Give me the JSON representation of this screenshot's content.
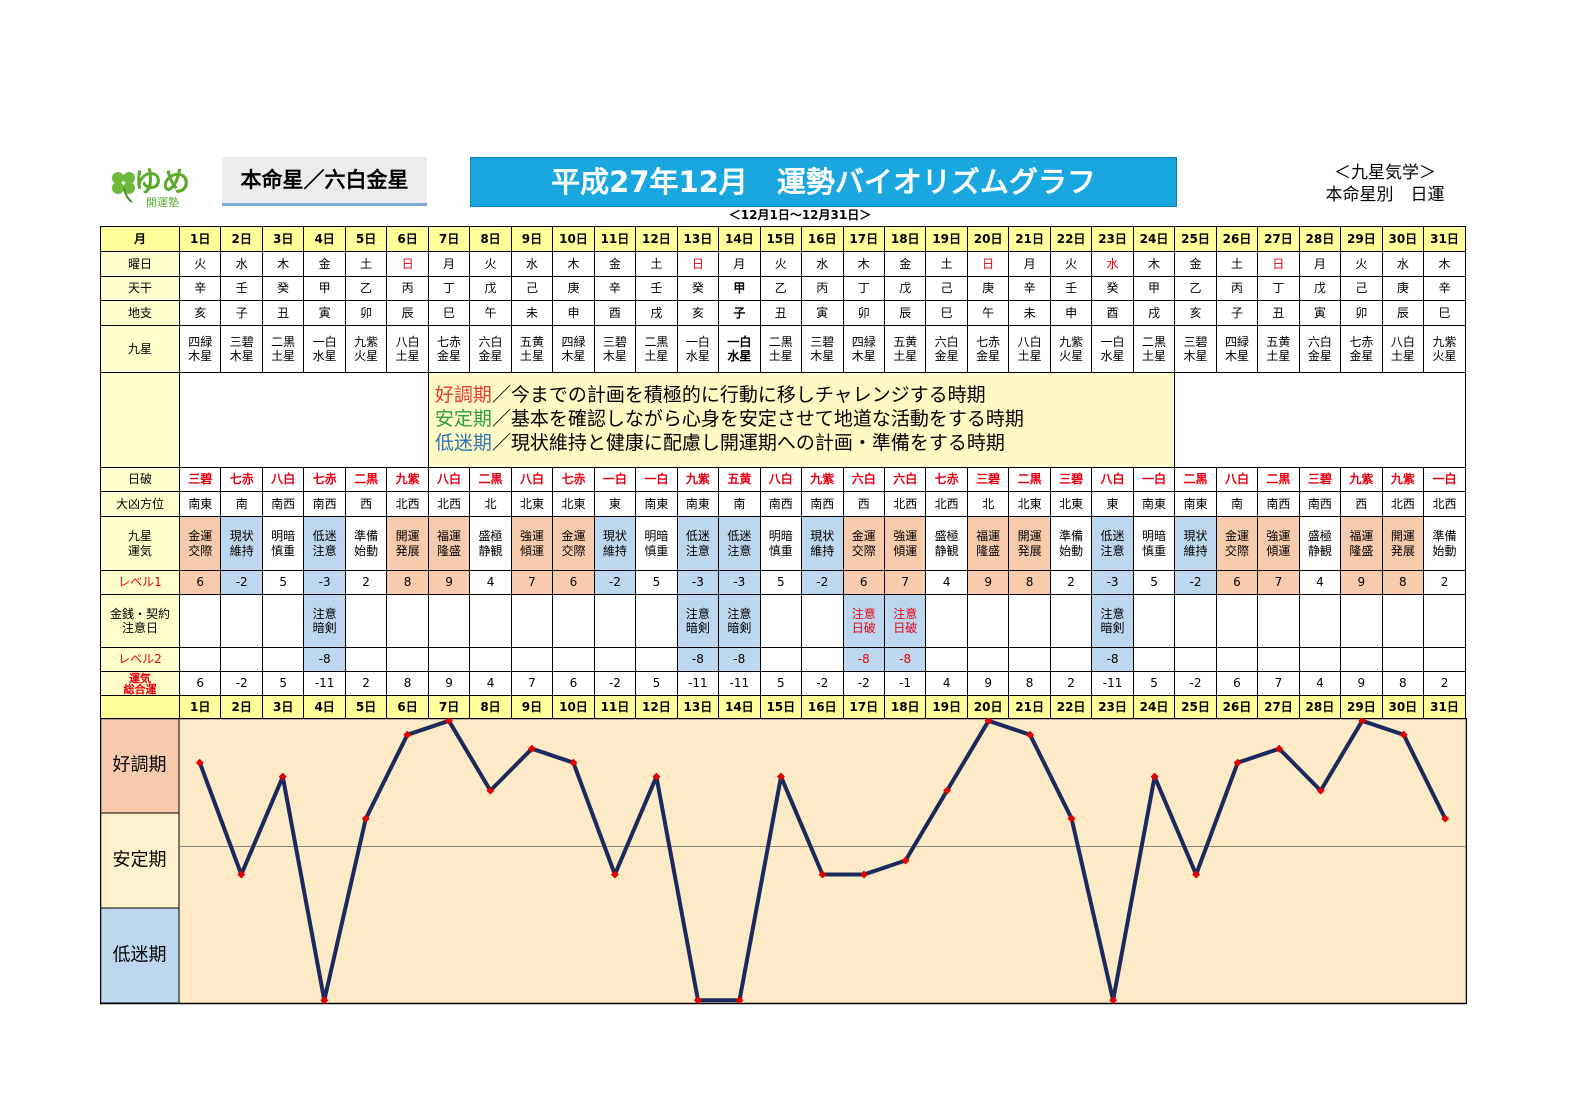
{
  "header": {
    "logo_main": "ゆめ",
    "logo_sub": "開運塾",
    "star": "本命星／六白金星",
    "title": "平成27年12月　運勢バイオリズムグラフ",
    "system": "＜九星気学＞",
    "kind": "本命星別　日運",
    "period": "＜12月1日～12月31日＞"
  },
  "table": {
    "labels": {
      "month": "月",
      "weekday": "曜日",
      "stem": "天干",
      "branch": "地支",
      "star": "九星",
      "break": "日破",
      "direction": "大凶方位",
      "fortune": "九星\n運気",
      "level1": "レベル1",
      "caution": "金銭・契約\n注意日",
      "level2": "レベル2",
      "total": "運気\n総合運"
    },
    "days": [
      "1日",
      "2日",
      "3日",
      "4日",
      "5日",
      "6日",
      "7日",
      "8日",
      "9日",
      "10日",
      "11日",
      "12日",
      "13日",
      "14日",
      "15日",
      "16日",
      "17日",
      "18日",
      "19日",
      "20日",
      "21日",
      "22日",
      "23日",
      "24日",
      "25日",
      "26日",
      "27日",
      "28日",
      "29日",
      "30日",
      "31日"
    ],
    "weekdays": [
      "火",
      "水",
      "木",
      "金",
      "土",
      "日",
      "月",
      "火",
      "水",
      "木",
      "金",
      "土",
      "日",
      "月",
      "火",
      "水",
      "木",
      "金",
      "土",
      "日",
      "月",
      "火",
      "水",
      "木",
      "金",
      "土",
      "日",
      "月",
      "火",
      "水",
      "木"
    ],
    "red_weekday_indices": [
      5,
      12,
      19,
      22,
      26
    ],
    "red_color": "#e60012",
    "stems": [
      "辛",
      "壬",
      "癸",
      "甲",
      "乙",
      "丙",
      "丁",
      "戊",
      "己",
      "庚",
      "辛",
      "壬",
      "癸",
      "甲",
      "乙",
      "丙",
      "丁",
      "戊",
      "己",
      "庚",
      "辛",
      "壬",
      "癸",
      "甲",
      "乙",
      "丙",
      "丁",
      "戊",
      "己",
      "庚",
      "辛"
    ],
    "branches": [
      "亥",
      "子",
      "丑",
      "寅",
      "卯",
      "辰",
      "巳",
      "午",
      "未",
      "申",
      "酉",
      "戌",
      "亥",
      "子",
      "丑",
      "寅",
      "卯",
      "辰",
      "巳",
      "午",
      "未",
      "申",
      "酉",
      "戌",
      "亥",
      "子",
      "丑",
      "寅",
      "卯",
      "辰",
      "巳"
    ],
    "bold_index": 13,
    "stars": [
      "四緑木星",
      "三碧木星",
      "二黒土星",
      "一白水星",
      "九紫火星",
      "八白土星",
      "七赤金星",
      "六白金星",
      "五黄土星",
      "四緑木星",
      "三碧木星",
      "二黒土星",
      "一白水星",
      "一白水星",
      "二黒土星",
      "三碧木星",
      "四緑木星",
      "五黄土星",
      "六白金星",
      "七赤金星",
      "八白土星",
      "九紫火星",
      "一白水星",
      "二黒土星",
      "三碧木星",
      "四緑木星",
      "五黄土星",
      "六白金星",
      "七赤金星",
      "八白土星",
      "九紫火星"
    ],
    "breaks": [
      "三碧",
      "七赤",
      "八白",
      "七赤",
      "二黒",
      "九紫",
      "八白",
      "二黒",
      "八白",
      "七赤",
      "一白",
      "一白",
      "九紫",
      "五黄",
      "八白",
      "九紫",
      "六白",
      "六白",
      "七赤",
      "三碧",
      "二黒",
      "三碧",
      "八白",
      "一白",
      "二黒",
      "八白",
      "二黒",
      "三碧",
      "九紫",
      "九紫",
      "一白"
    ],
    "directions": [
      "南東",
      "南",
      "南西",
      "南西",
      "西",
      "北西",
      "北西",
      "北",
      "北東",
      "北東",
      "東",
      "南東",
      "南東",
      "南",
      "南西",
      "南西",
      "西",
      "北西",
      "北西",
      "北",
      "北東",
      "北東",
      "東",
      "南東",
      "南東",
      "南",
      "南西",
      "南西",
      "西",
      "北西",
      "北西"
    ],
    "fortunes": [
      "金運交際",
      "現状維持",
      "明暗慎重",
      "低迷注意",
      "準備始動",
      "開運発展",
      "福運隆盛",
      "盛極静観",
      "強運傾運",
      "金運交際",
      "現状維持",
      "明暗慎重",
      "低迷注意",
      "低迷注意",
      "明暗慎重",
      "現状維持",
      "金運交際",
      "強運傾運",
      "盛極静観",
      "福運隆盛",
      "開運発展",
      "準備始動",
      "低迷注意",
      "明暗慎重",
      "現状維持",
      "金運交際",
      "強運傾運",
      "盛極静観",
      "福運隆盛",
      "開運発展",
      "準備始動"
    ],
    "tones": [
      "good",
      "bad",
      "neutral",
      "bad",
      "neutral",
      "good",
      "good",
      "neutral",
      "good",
      "good",
      "bad",
      "neutral",
      "bad",
      "bad",
      "neutral",
      "bad",
      "good",
      "good",
      "neutral",
      "good",
      "good",
      "neutral",
      "bad",
      "neutral",
      "bad",
      "good",
      "good",
      "neutral",
      "good",
      "good",
      "neutral"
    ],
    "tone_colors": {
      "good": "#f8cbad",
      "bad": "#bdd7ee",
      "neutral": "#ffffff"
    },
    "level1": [
      6,
      -2,
      5,
      -3,
      2,
      8,
      9,
      4,
      7,
      6,
      -2,
      5,
      -3,
      -3,
      5,
      -2,
      6,
      7,
      4,
      9,
      8,
      2,
      -3,
      5,
      -2,
      6,
      7,
      4,
      9,
      8,
      2
    ],
    "cautions": [
      null,
      null,
      null,
      "注意暗剣",
      null,
      null,
      null,
      null,
      null,
      null,
      null,
      null,
      "注意暗剣",
      "注意暗剣",
      null,
      null,
      "注意日破",
      "注意日破",
      null,
      null,
      null,
      null,
      "注意暗剣",
      null,
      null,
      null,
      null,
      null,
      null,
      null,
      null
    ],
    "caution_red_indices": [
      16,
      17
    ],
    "level2": [
      null,
      null,
      null,
      -8,
      null,
      null,
      null,
      null,
      null,
      null,
      null,
      null,
      -8,
      -8,
      null,
      null,
      -8,
      -8,
      null,
      null,
      null,
      null,
      -8,
      null,
      null,
      null,
      null,
      null,
      null,
      null,
      null
    ]
  },
  "legend": [
    {
      "name": "好調期",
      "color": "#e03c31",
      "band": "#f8cbad",
      "text": "／今までの計画を積極的に行動に移しチャレンジする時期"
    },
    {
      "name": "安定期",
      "color": "#2e9e3e",
      "band": "#fff2cc",
      "text": "／基本を確認しながら心身を安定させて地道な活動をする時期"
    },
    {
      "name": "低迷期",
      "color": "#2e75b6",
      "band": "#bdd7ee",
      "text": "／現状維持と健康に配慮し開運期への計画・準備をする時期"
    }
  ],
  "chart_data": {
    "type": "line",
    "values": [
      6,
      -2,
      5,
      -11,
      2,
      8,
      9,
      4,
      7,
      6,
      -2,
      5,
      -11,
      -11,
      5,
      -2,
      -2,
      -1,
      4,
      9,
      8,
      2,
      -11,
      5,
      -2,
      6,
      7,
      4,
      9,
      8,
      2
    ],
    "ylim": [
      -11.2,
      9.2
    ],
    "color": "#1b2a5c",
    "marker_color": "#e00000",
    "background": "#fdebc8"
  }
}
